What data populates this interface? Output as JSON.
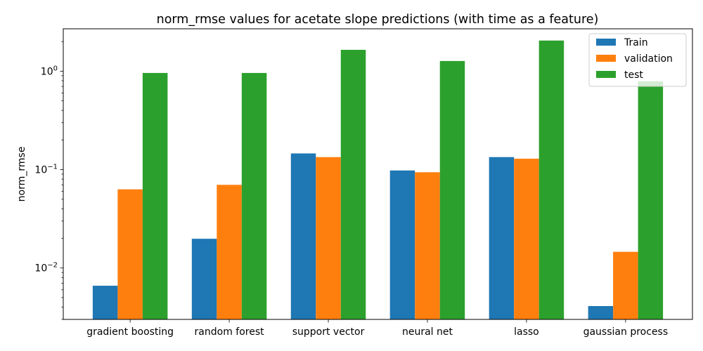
{
  "chart_data": {
    "type": "bar",
    "title": "norm_rmse values for acetate slope predictions (with time as a feature)",
    "xlabel": "",
    "ylabel": "norm_rmse",
    "yscale": "log",
    "ylim": [
      0.003,
      2.7
    ],
    "categories": [
      "gradient boosting",
      "random forest",
      "support vector",
      "neural net",
      "lasso",
      "gaussian process"
    ],
    "series": [
      {
        "name": "Train",
        "color": "#1f77b4",
        "values": [
          0.0066,
          0.0198,
          0.146,
          0.098,
          0.134,
          0.0041
        ]
      },
      {
        "name": "validation",
        "color": "#ff7f0e",
        "values": [
          0.063,
          0.07,
          0.134,
          0.094,
          0.129,
          0.0146
        ]
      },
      {
        "name": "test",
        "color": "#2ca02c",
        "values": [
          0.96,
          0.96,
          1.65,
          1.27,
          2.05,
          0.79
        ]
      }
    ],
    "y_ticks": [
      {
        "base": "10",
        "exp": "−2",
        "value": 0.01
      },
      {
        "base": "10",
        "exp": "−1",
        "value": 0.1
      },
      {
        "base": "10",
        "exp": "0",
        "value": 1
      }
    ],
    "grid": false,
    "legend_position": "top-right"
  }
}
